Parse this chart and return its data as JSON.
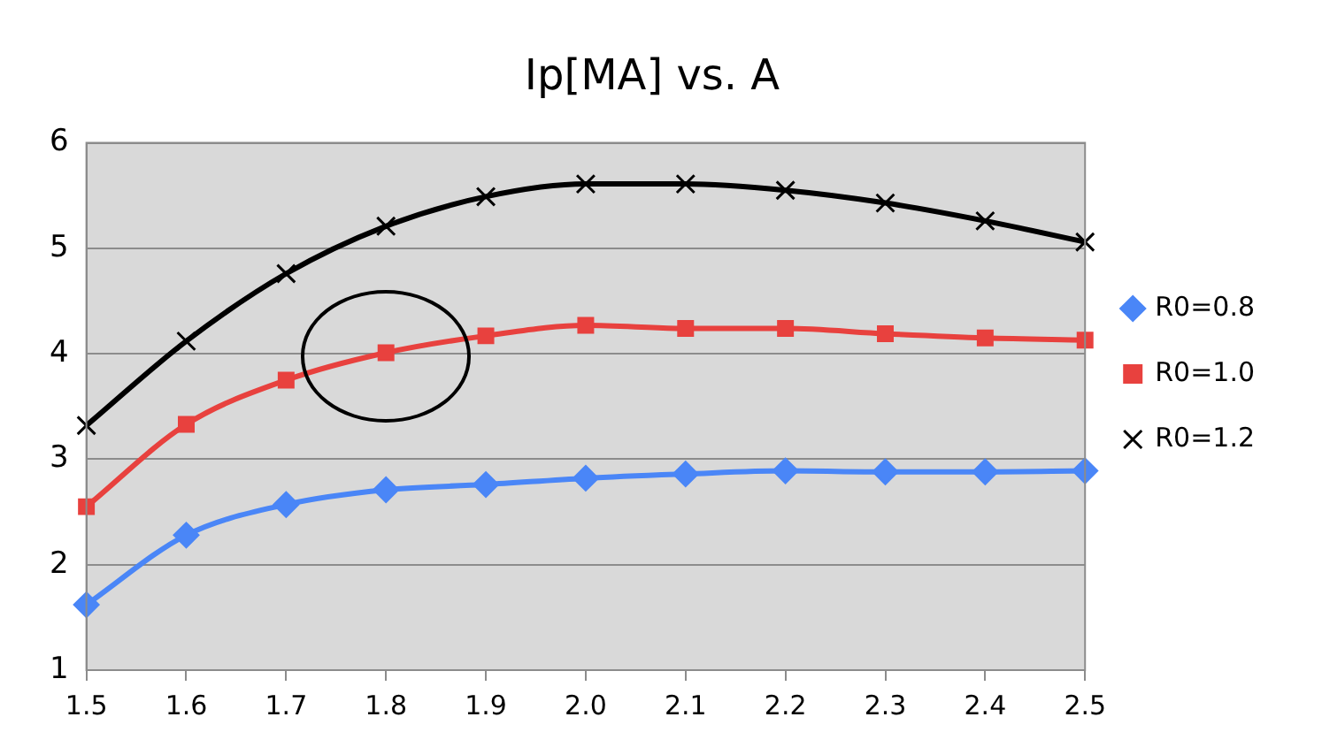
{
  "chart_data": {
    "type": "line",
    "title": "Ip[MA] vs. A",
    "categories": [
      "1.5",
      "1.6",
      "1.7",
      "1.8",
      "1.9",
      "2.0",
      "2.1",
      "2.2",
      "2.3",
      "2.4",
      "2.5"
    ],
    "series": [
      {
        "name": "R0=0.8",
        "color": "#4a86f7",
        "marker": "diamond",
        "values": [
          1.62,
          2.28,
          2.57,
          2.71,
          2.76,
          2.82,
          2.86,
          2.89,
          2.88,
          2.88,
          2.89
        ]
      },
      {
        "name": "R0=1.0",
        "color": "#e8413e",
        "marker": "square",
        "values": [
          2.55,
          3.33,
          3.75,
          4.01,
          4.17,
          4.27,
          4.24,
          4.24,
          4.19,
          4.15,
          4.13
        ]
      },
      {
        "name": "R0=1.2",
        "color": "#000000",
        "marker": "cross",
        "values": [
          3.32,
          4.12,
          4.76,
          5.21,
          5.49,
          5.61,
          5.61,
          5.55,
          5.43,
          5.26,
          5.06
        ]
      }
    ],
    "ylim": [
      1,
      6
    ],
    "yticks": [
      1,
      2,
      3,
      4,
      5,
      6
    ],
    "grid": "y",
    "legend": "right",
    "line_style": "solid"
  }
}
